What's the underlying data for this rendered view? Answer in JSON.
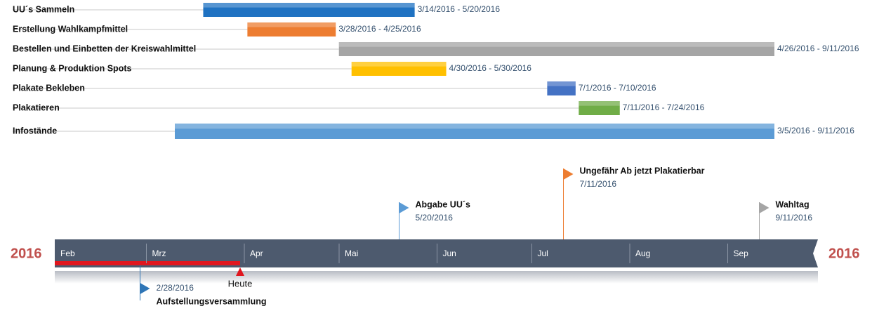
{
  "chart_data": {
    "type": "timeline",
    "tasks": [
      {
        "name": "UU´s Sammeln",
        "dates": "3/14/2016 - 5/20/2016",
        "color": "#1f72c2"
      },
      {
        "name": "Erstellung Wahlkampfmittel",
        "dates": "3/28/2016 - 4/25/2016",
        "color": "#ed7d31"
      },
      {
        "name": "Bestellen und Einbetten der Kreiswahlmittel",
        "dates": "4/26/2016 - 9/11/2016",
        "color": "#a5a5a5"
      },
      {
        "name": "Planung & Produktion Spots",
        "dates": "4/30/2016 - 5/30/2016",
        "color": "#ffc000"
      },
      {
        "name": "Plakate Bekleben",
        "dates": "7/1/2016 - 7/10/2016",
        "color": "#4472c4"
      },
      {
        "name": "Plakatieren",
        "dates": "7/11/2016 - 7/24/2016",
        "color": "#70ad47"
      },
      {
        "name": "Infostände",
        "dates": "3/5/2016 - 9/11/2016",
        "color": "#5b9bd5"
      }
    ],
    "months": [
      "Feb",
      "Mrz",
      "Apr",
      "Mai",
      "Jun",
      "Jul",
      "Aug",
      "Sep"
    ],
    "year_left": "2016",
    "year_right": "2016",
    "today_label": "Heute",
    "milestones": [
      {
        "name": "Abgabe UU´s",
        "date": "5/20/2016",
        "color": "#5b9bd5",
        "side": "above"
      },
      {
        "name": "Ungefähr Ab jetzt Plakatierbar",
        "date": "7/11/2016",
        "color": "#ed7d31",
        "side": "above"
      },
      {
        "name": "Wahltag",
        "date": "9/11/2016",
        "color": "#a5a5a5",
        "side": "above"
      },
      {
        "name": "Aufstellungsversammlung",
        "date": "2/28/2016",
        "color": "#2e75b6",
        "side": "below"
      }
    ]
  }
}
